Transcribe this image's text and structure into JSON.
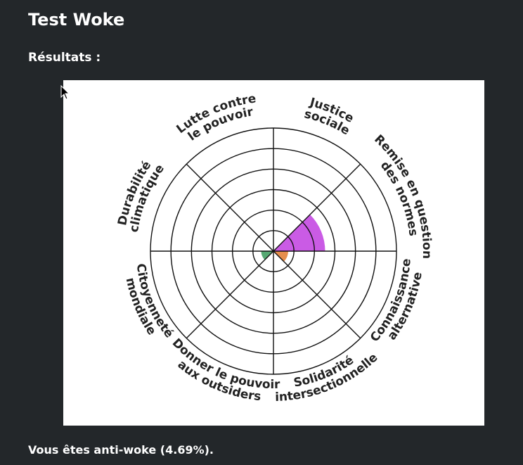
{
  "page": {
    "title": "Test Woke",
    "results_label": "Résultats :",
    "verdict": "Vous êtes anti-woke (4.69%)."
  },
  "chart_data": {
    "type": "radar",
    "rings": 6,
    "axes": [
      {
        "label": [
          "Justice",
          "sociale"
        ],
        "value": 0,
        "color": "#9b59b6"
      },
      {
        "label": [
          "Remise en question",
          "des normes"
        ],
        "value": 0.42,
        "color": "#c13ee0"
      },
      {
        "label": [
          "Connaissance",
          "alternative"
        ],
        "value": 0.12,
        "color": "#e07a2e"
      },
      {
        "label": [
          "Solidarité",
          "intersectionnelle"
        ],
        "value": 0,
        "color": "#888888"
      },
      {
        "label": [
          "Donner le pouvoir",
          "aux outsiders"
        ],
        "value": 0,
        "color": "#888888"
      },
      {
        "label": [
          "Citoyenneté",
          "mondiale"
        ],
        "value": 0.1,
        "color": "#3a9a5a"
      },
      {
        "label": [
          "Durabilité",
          "climatique"
        ],
        "value": 0,
        "color": "#888888"
      },
      {
        "label": [
          "Lutte contre",
          "le pouvoir"
        ],
        "value": 0,
        "color": "#888888"
      }
    ]
  }
}
